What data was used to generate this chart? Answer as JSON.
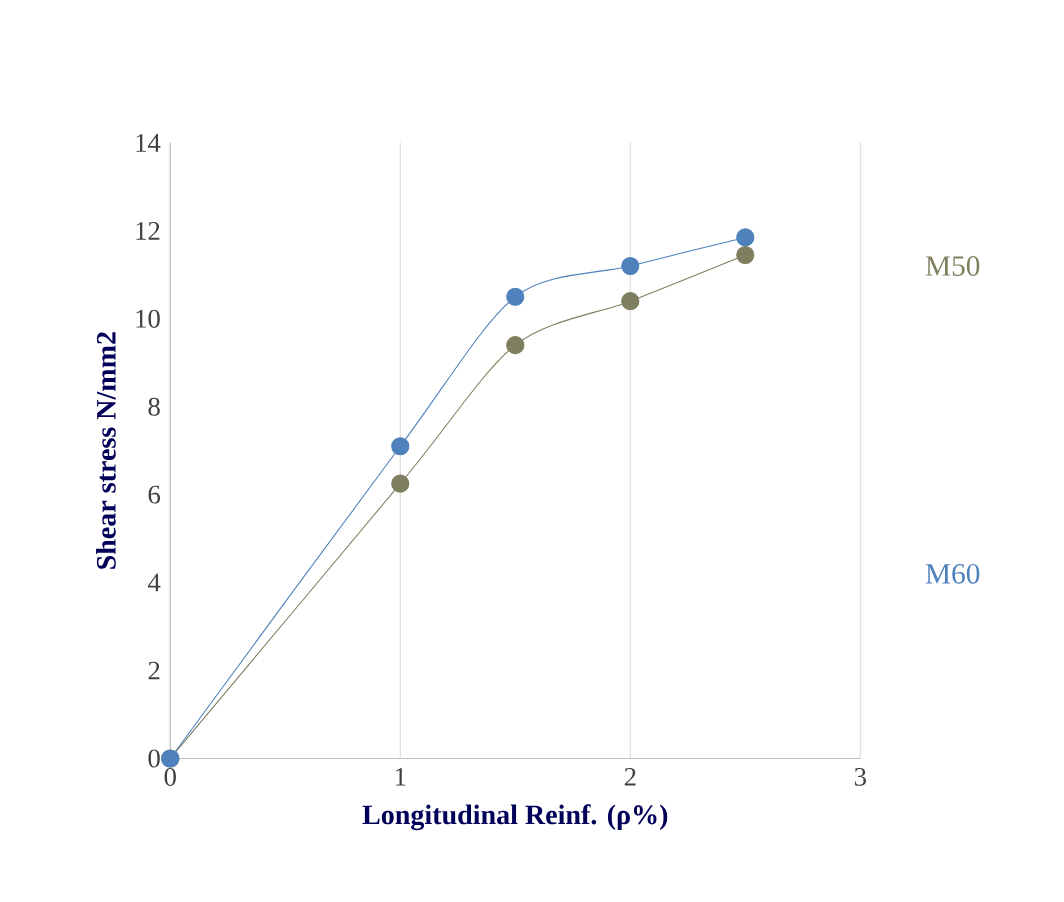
{
  "chart_data": {
    "type": "line",
    "xlabel": "Longitudinal Reinf. (ρ%)",
    "ylabel": "Shear stress N/mm2",
    "x": [
      0,
      1,
      1.5,
      2,
      2.5
    ],
    "series": [
      {
        "name": "M50",
        "color": "#7f7f5f",
        "values": [
          0,
          6.25,
          9.4,
          10.4,
          11.45
        ]
      },
      {
        "name": "M60",
        "color": "#4f81bd",
        "values": [
          0,
          7.1,
          10.5,
          11.2,
          11.85
        ]
      }
    ],
    "xlim": [
      0,
      3
    ],
    "xticks": [
      0,
      1,
      2,
      3
    ],
    "ylim": [
      0,
      14
    ],
    "yticks": [
      0,
      2,
      4,
      6,
      8,
      10,
      12,
      14
    ],
    "grid": "x",
    "legend": "right",
    "marker": "circle",
    "line_style": "solid"
  }
}
